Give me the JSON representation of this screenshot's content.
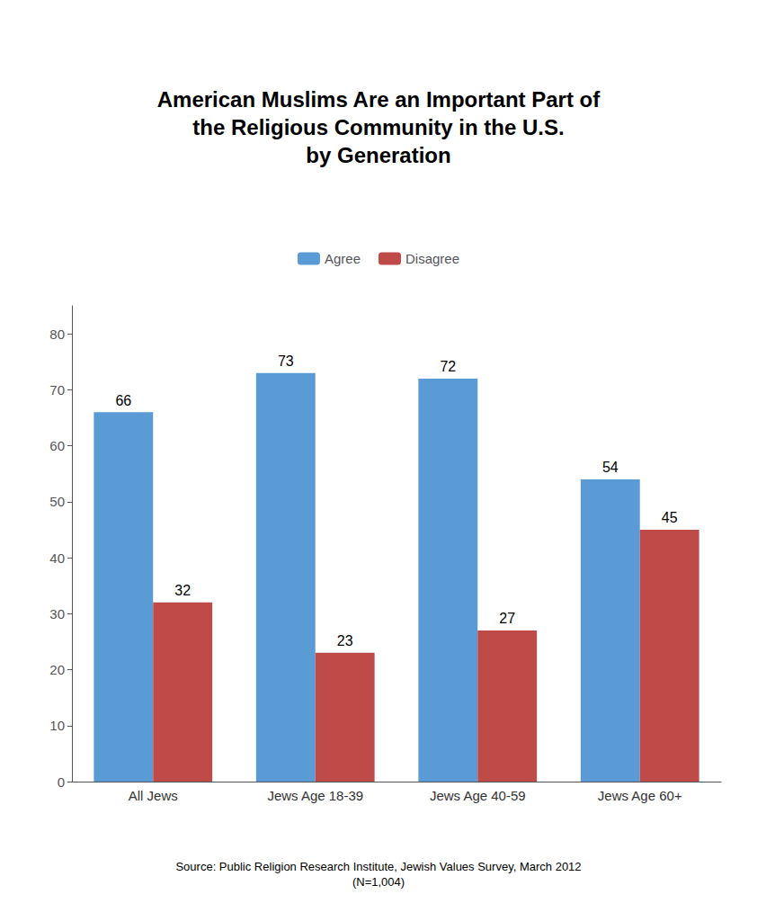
{
  "chart_data": {
    "type": "bar",
    "title": "American Muslims Are an Important Part of\nthe Religious Community in the U.S.\nby Generation",
    "categories": [
      "All Jews",
      "Jews Age 18-39",
      "Jews Age 40-59",
      "Jews Age 60+"
    ],
    "series": [
      {
        "name": "Agree",
        "color": "#5B9BD5",
        "values": [
          66,
          73,
          72,
          54
        ]
      },
      {
        "name": "Disagree",
        "color": "#BE4B48",
        "values": [
          32,
          23,
          27,
          45
        ]
      }
    ],
    "ylim": [
      0,
      85
    ],
    "yticks": [
      0,
      10,
      20,
      30,
      40,
      50,
      60,
      70,
      80
    ],
    "grid": false,
    "legend": "top",
    "data_labels": true,
    "annotations": [
      "Source: Public Religion Research Institute, Jewish Values Survey, March 2012\n(N=1,004)"
    ]
  }
}
